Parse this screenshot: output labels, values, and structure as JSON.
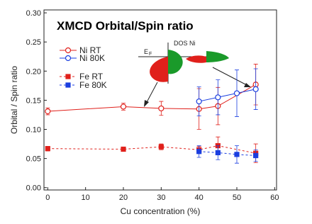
{
  "chart_data": {
    "type": "line",
    "title": "XMCD Orbital/Spin ratio",
    "xlabel": "Cu concentration (%)",
    "ylabel": "Orbital / Spin ratio",
    "xlim": [
      -1,
      60.5
    ],
    "ylim": [
      -0.004,
      0.305
    ],
    "xticks": [
      0,
      10,
      20,
      30,
      40,
      50,
      60
    ],
    "yticks": [
      {
        "value": 0,
        "label": "0.00"
      },
      0.05,
      {
        "value": 0.1,
        "label": "0.10"
      },
      0.15,
      {
        "value": 0.2,
        "label": "0.20"
      },
      0.25,
      {
        "value": 0.3,
        "label": "0.30"
      }
    ],
    "legend": "upper left",
    "inset": {
      "label": "DOS Ni",
      "fermi_symbol": "E",
      "fermi_subscript": "F"
    },
    "series": [
      {
        "name": "Ni RT",
        "color": "#e0201b",
        "marker": "circle",
        "filled": false,
        "linestyle": "solid",
        "x": [
          0,
          20,
          30,
          40,
          45,
          55
        ],
        "values": [
          0.131,
          0.139,
          0.136,
          0.135,
          0.14,
          0.177
        ],
        "errors": [
          0.006,
          0.006,
          0.012,
          0.035,
          0.032,
          0.035
        ]
      },
      {
        "name": "Ni 80K",
        "color": "#1a3ee0",
        "marker": "circle",
        "filled": false,
        "linestyle": "solid",
        "x": [
          40,
          45,
          50,
          55
        ],
        "values": [
          0.148,
          0.155,
          0.162,
          0.169
        ],
        "errors": [
          0.025,
          0.03,
          0.04,
          0.035
        ]
      },
      {
        "name": "Fe RT",
        "color": "#e0201b",
        "marker": "square",
        "filled": true,
        "linestyle": "dashed",
        "x": [
          0,
          20,
          30,
          40,
          45,
          55
        ],
        "values": [
          0.067,
          0.066,
          0.07,
          0.065,
          0.072,
          0.059
        ],
        "errors": [
          0.004,
          0.002,
          0.005,
          0.006,
          0.015,
          0.016
        ]
      },
      {
        "name": "Fe 80K",
        "color": "#1a3ee0",
        "marker": "square",
        "filled": true,
        "linestyle": "dashed",
        "x": [
          40,
          45,
          50,
          55
        ],
        "values": [
          0.062,
          0.06,
          0.057,
          0.055
        ],
        "errors": [
          0.01,
          0.012,
          0.015,
          0.01
        ]
      }
    ]
  }
}
